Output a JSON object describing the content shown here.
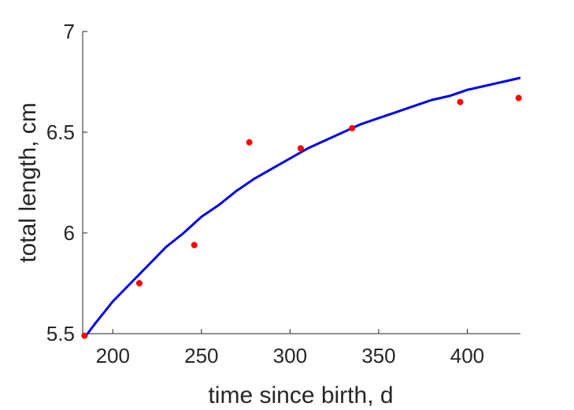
{
  "chart_data": {
    "type": "scatter",
    "title": "",
    "xlabel": "time since birth, d",
    "ylabel": "total length, cm",
    "xlim": [
      183,
      430
    ],
    "ylim": [
      5.5,
      7
    ],
    "xticks": [
      200,
      250,
      300,
      350,
      400
    ],
    "yticks": [
      5.5,
      6,
      6.5,
      7
    ],
    "xtick_labels": [
      "200",
      "250",
      "300",
      "350",
      "400"
    ],
    "ytick_labels": [
      "5.5",
      "6",
      "6.5",
      "7"
    ],
    "grid": false,
    "box": false,
    "series": [
      {
        "kind": "points",
        "color": "#ff0000",
        "x": [
          184,
          215,
          246,
          277,
          306,
          335,
          396,
          429
        ],
        "y": [
          5.49,
          5.75,
          5.94,
          6.45,
          6.42,
          6.52,
          6.65,
          6.67
        ]
      },
      {
        "kind": "line",
        "color": "#0000ee",
        "x": [
          184,
          190,
          200,
          210,
          220,
          230,
          240,
          250,
          260,
          270,
          280,
          290,
          300,
          310,
          320,
          330,
          340,
          350,
          360,
          370,
          380,
          390,
          400,
          410,
          420,
          430
        ],
        "y": [
          5.48,
          5.55,
          5.66,
          5.75,
          5.84,
          5.93,
          6.0,
          6.08,
          6.14,
          6.21,
          6.27,
          6.32,
          6.37,
          6.42,
          6.46,
          6.5,
          6.54,
          6.57,
          6.6,
          6.63,
          6.66,
          6.68,
          6.71,
          6.73,
          6.75,
          6.77
        ]
      }
    ]
  }
}
